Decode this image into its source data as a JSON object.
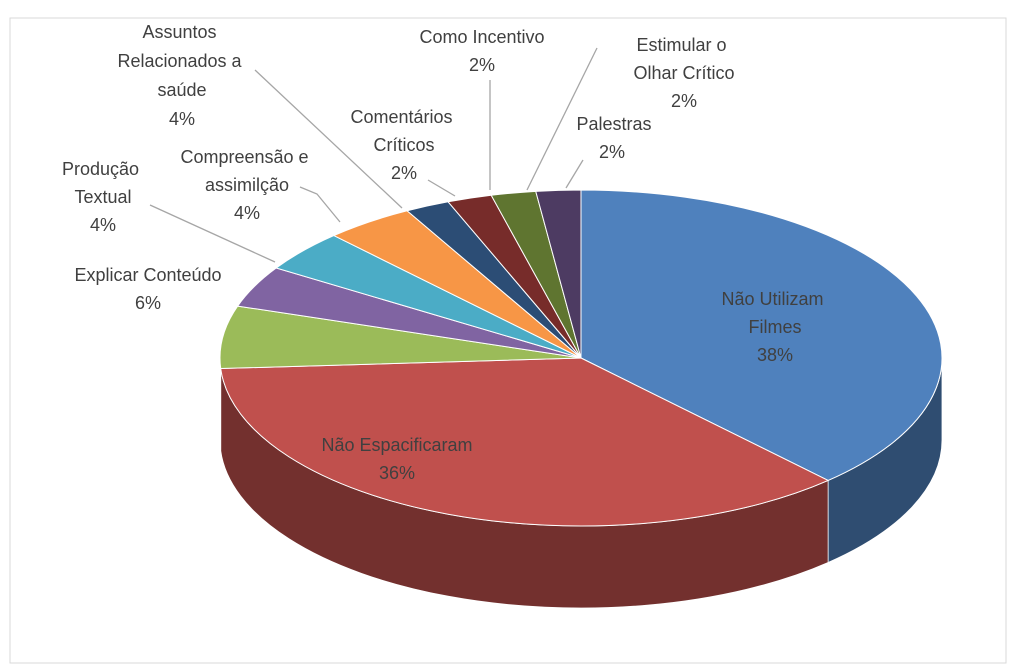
{
  "chart_data": {
    "type": "pie3d",
    "categories": [
      "Não Utilizam Filmes",
      "Não Espacificaram",
      "Explicar Conteúdo",
      "Produção Textual",
      "Compreensão e assimilção",
      "Assuntos Relacionados a saúde",
      "Comentários Críticos",
      "Como Incentivo",
      "Estimular o Olhar Crítico",
      "Palestras"
    ],
    "values": [
      38,
      36,
      6,
      4,
      4,
      4,
      2,
      2,
      2,
      2
    ],
    "value_labels": [
      "38%",
      "36%",
      "6%",
      "4%",
      "4%",
      "4%",
      "2%",
      "2%",
      "2%",
      "2%"
    ],
    "colors": [
      "#4f81bd",
      "#c0504d",
      "#9bbb59",
      "#8064a2",
      "#4bacc6",
      "#f79646",
      "#2c4d75",
      "#772c2a",
      "#5f7530",
      "#4d3b62"
    ]
  }
}
